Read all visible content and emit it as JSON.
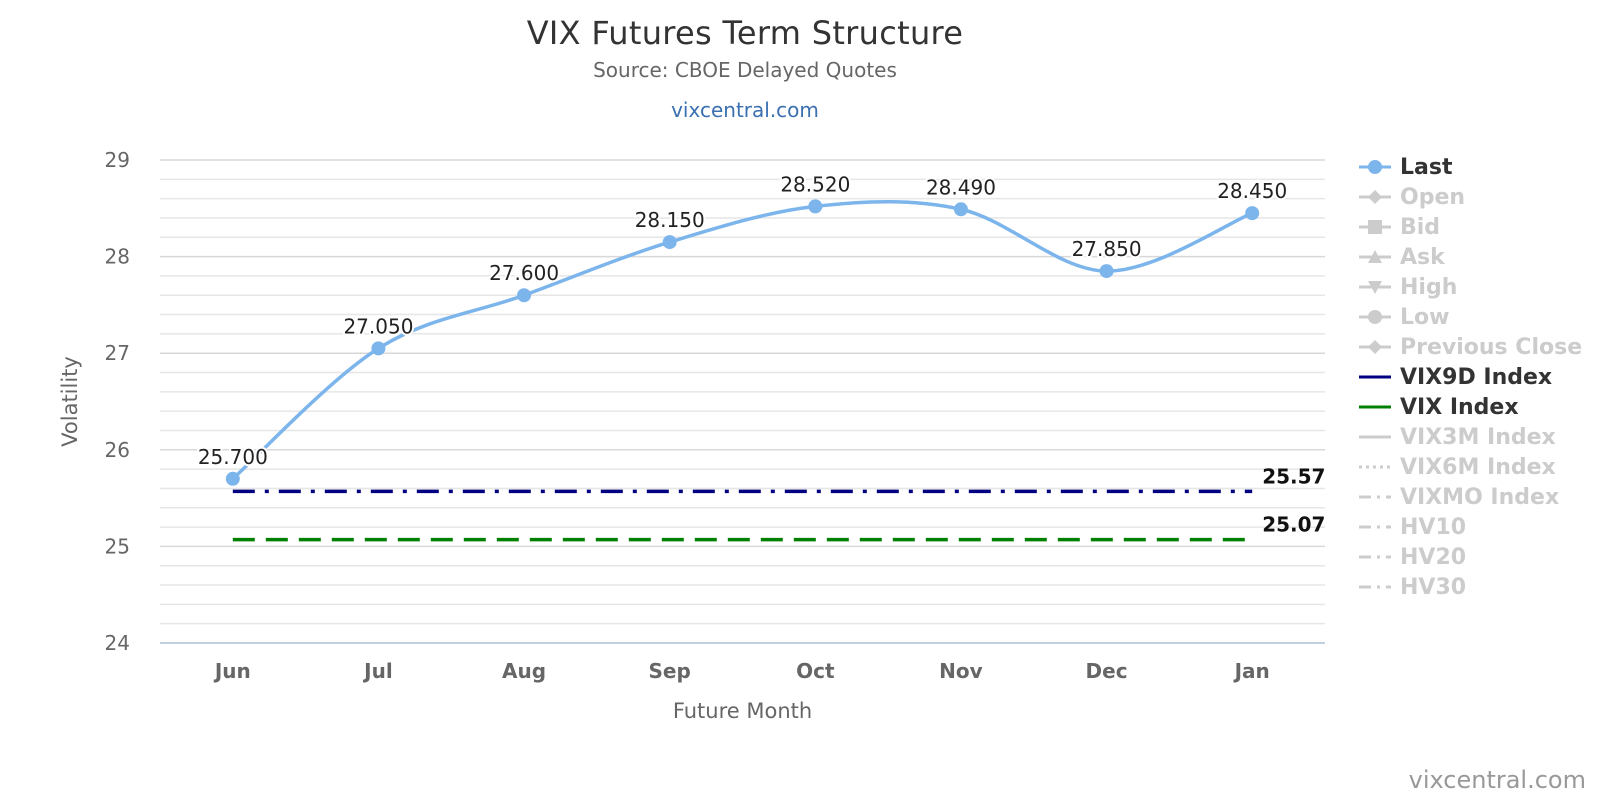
{
  "chart_data": {
    "type": "line",
    "title": "VIX Futures Term Structure",
    "subtitle": "Source: CBOE Delayed Quotes",
    "link_text": "vixcentral.com",
    "credit": "vixcentral.com",
    "xlabel": "Future Month",
    "ylabel": "Volatility",
    "categories": [
      "Jun",
      "Jul",
      "Aug",
      "Sep",
      "Oct",
      "Nov",
      "Dec",
      "Jan"
    ],
    "ylim": [
      24,
      29
    ],
    "yticks": [
      24,
      25,
      26,
      27,
      28,
      29
    ],
    "grid": true,
    "legend_position": "right",
    "series": [
      {
        "name": "Last",
        "color": "#7cb5ec",
        "style": "solid-smooth-markers",
        "values": [
          25.7,
          27.05,
          27.6,
          28.15,
          28.52,
          28.49,
          27.85,
          28.45
        ],
        "labels": [
          "25.700",
          "27.050",
          "27.600",
          "28.150",
          "28.520",
          "28.490",
          "27.850",
          "28.450"
        ]
      },
      {
        "name": "VIX9D Index",
        "color": "#000080",
        "style": "dash-dot",
        "values": [
          25.57,
          25.57,
          25.57,
          25.57,
          25.57,
          25.57,
          25.57,
          25.57
        ],
        "end_label": "25.57"
      },
      {
        "name": "VIX Index",
        "color": "#008000",
        "style": "dash",
        "values": [
          25.07,
          25.07,
          25.07,
          25.07,
          25.07,
          25.07,
          25.07,
          25.07
        ],
        "end_label": "25.07"
      }
    ]
  },
  "legend": {
    "items": [
      {
        "label": "Last",
        "active": true,
        "icon": "circle-line-icon",
        "color": "#7cb5ec"
      },
      {
        "label": "Open",
        "active": false,
        "icon": "diamond-line-icon",
        "color": "#cccccc"
      },
      {
        "label": "Bid",
        "active": false,
        "icon": "square-line-icon",
        "color": "#cccccc"
      },
      {
        "label": "Ask",
        "active": false,
        "icon": "triangle-line-icon",
        "color": "#cccccc"
      },
      {
        "label": "High",
        "active": false,
        "icon": "triangle-down-line-icon",
        "color": "#cccccc"
      },
      {
        "label": "Low",
        "active": false,
        "icon": "circle-line-icon",
        "color": "#cccccc"
      },
      {
        "label": "Previous Close",
        "active": false,
        "icon": "diamond-line-icon",
        "color": "#cccccc"
      },
      {
        "label": "VIX9D Index",
        "active": true,
        "icon": "solid-line-icon",
        "color": "#000080"
      },
      {
        "label": "VIX Index",
        "active": true,
        "icon": "solid-line-icon",
        "color": "#008000"
      },
      {
        "label": "VIX3M Index",
        "active": false,
        "icon": "solid-line-icon",
        "color": "#cccccc"
      },
      {
        "label": "VIX6M Index",
        "active": false,
        "icon": "dotted-line-icon",
        "color": "#cccccc"
      },
      {
        "label": "VIXMO Index",
        "active": false,
        "icon": "dash-dot-line-icon",
        "color": "#cccccc"
      },
      {
        "label": "HV10",
        "active": false,
        "icon": "dash-dot-line-icon",
        "color": "#cccccc"
      },
      {
        "label": "HV20",
        "active": false,
        "icon": "dash-dot-line-icon",
        "color": "#cccccc"
      },
      {
        "label": "HV30",
        "active": false,
        "icon": "dash-dot-line-icon",
        "color": "#cccccc"
      }
    ]
  }
}
